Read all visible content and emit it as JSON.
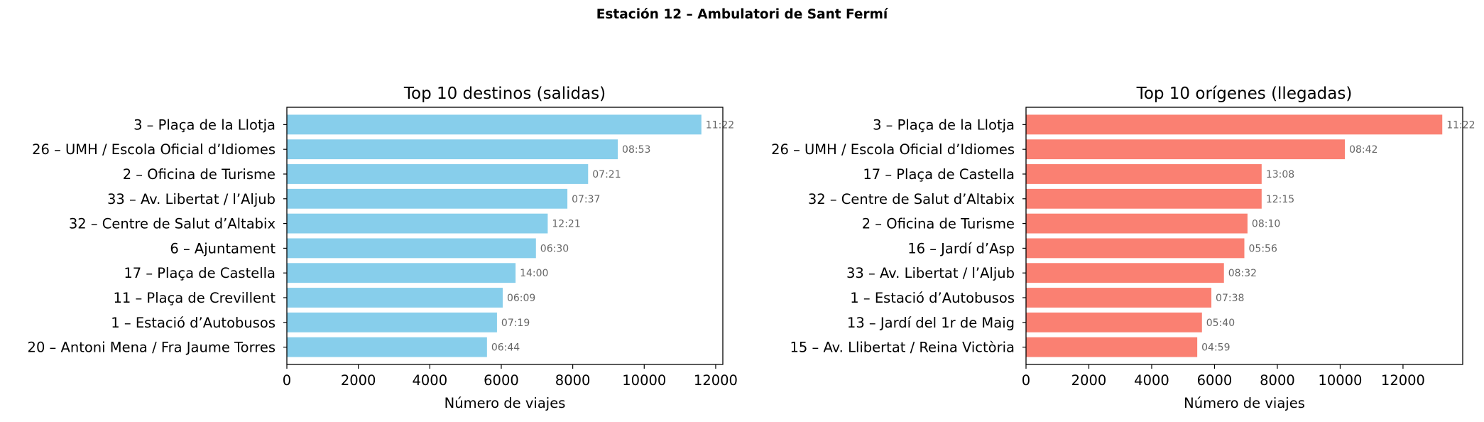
{
  "suptitle": "Estación 12 – Ambulatori de Sant Fermí",
  "chart_data": [
    {
      "type": "bar",
      "orientation": "horizontal",
      "title": "Top 10 destinos (salidas)",
      "xlabel": "Número de viajes",
      "ylabel": "",
      "xlim": [
        0,
        12200
      ],
      "xticks": [
        "0",
        "2000",
        "4000",
        "6000",
        "8000",
        "10000",
        "12000"
      ],
      "color": "#87CEEB",
      "categories": [
        "3 – Plaça de la Llotja",
        "26 – UMH / Escola Oficial d’Idiomes",
        "2 – Oficina de Turisme",
        "33 – Av. Libertat / l’Aljub",
        "32 – Centre de Salut d’Altabix",
        "6 – Ajuntament",
        "17 – Plaça de Castella",
        "11 – Plaça de Crevillent",
        "1 – Estació d’Autobusos",
        "20 – Antoni Mena / Fra Jaume Torres"
      ],
      "values": [
        11600,
        9260,
        8430,
        7850,
        7300,
        6970,
        6400,
        6040,
        5880,
        5600
      ],
      "annotations": [
        "11:22",
        "08:53",
        "07:21",
        "07:37",
        "12:21",
        "06:30",
        "14:00",
        "06:09",
        "07:19",
        "06:44"
      ]
    },
    {
      "type": "bar",
      "orientation": "horizontal",
      "title": "Top 10 orígenes (llegadas)",
      "xlabel": "Número de viajes",
      "ylabel": "",
      "xlim": [
        0,
        13900
      ],
      "xticks": [
        "0",
        "2000",
        "4000",
        "6000",
        "8000",
        "10000",
        "12000"
      ],
      "color": "#FA8072",
      "categories": [
        "3 – Plaça de la Llotja",
        "26 – UMH / Escola Oficial d’Idiomes",
        "17 – Plaça de Castella",
        "32 – Centre de Salut d’Altabix",
        "2 – Oficina de Turisme",
        "16 – Jardí d’Asp",
        "33 – Av. Libertat / l’Aljub",
        "1 – Estació d’Autobusos",
        "13 – Jardí del 1r de Maig",
        "15 – Av. Llibertat / Reina Victòria"
      ],
      "values": [
        13250,
        10150,
        7500,
        7500,
        7050,
        6950,
        6300,
        5900,
        5600,
        5450
      ],
      "annotations": [
        "11:22",
        "08:42",
        "13:08",
        "12:15",
        "08:10",
        "05:56",
        "08:32",
        "07:38",
        "05:40",
        "04:59"
      ]
    }
  ]
}
